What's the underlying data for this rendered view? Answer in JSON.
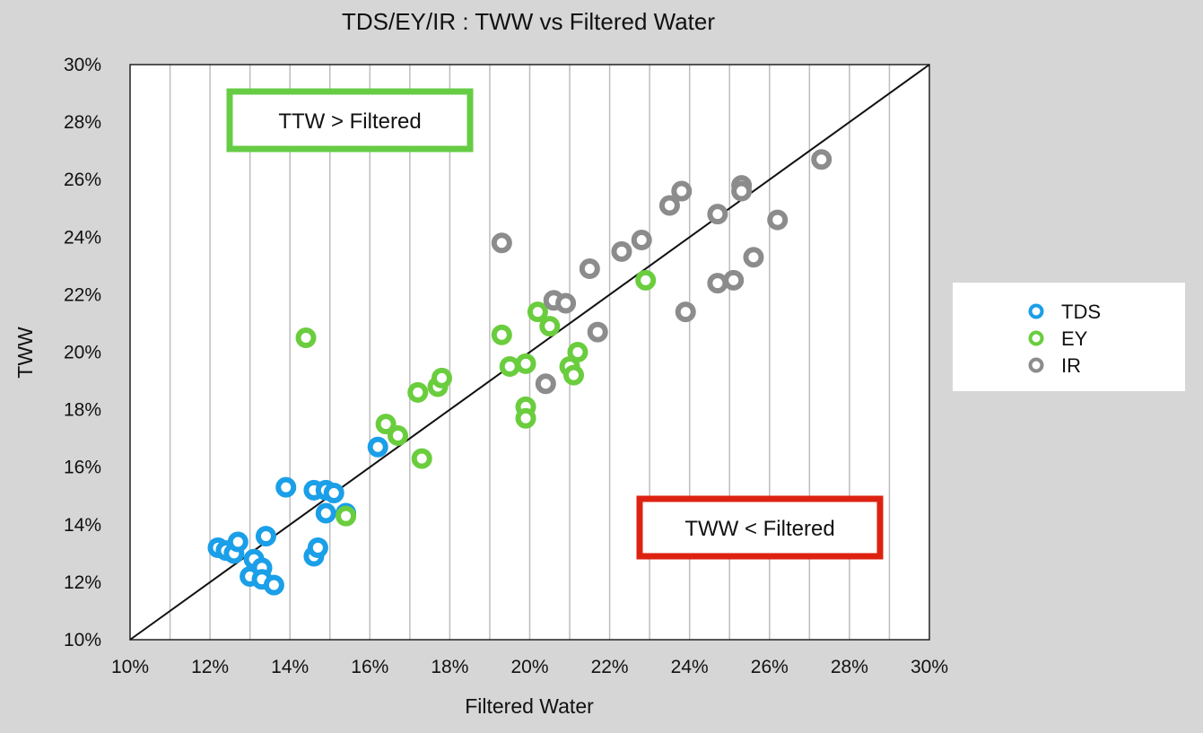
{
  "chart_data": {
    "type": "scatter",
    "title": "TDS/EY/IR : TWW vs Filtered Water",
    "xlabel": "Filtered Water",
    "ylabel": "TWW",
    "xlim": [
      10,
      30
    ],
    "ylim": [
      10,
      30
    ],
    "x_ticks": [
      "10%",
      "12%",
      "14%",
      "16%",
      "18%",
      "20%",
      "22%",
      "24%",
      "26%",
      "28%",
      "30%"
    ],
    "y_ticks": [
      "10%",
      "12%",
      "14%",
      "16%",
      "18%",
      "20%",
      "22%",
      "24%",
      "26%",
      "28%",
      "30%"
    ],
    "grid": "vertical",
    "reference_line": {
      "from": [
        10,
        10
      ],
      "to": [
        30,
        30
      ]
    },
    "legend_position": "right",
    "annotations": [
      {
        "text": "TTW > Filtered",
        "border_color": "#66cc44"
      },
      {
        "text": "TWW < Filtered",
        "border_color": "#dd2211"
      }
    ],
    "series": [
      {
        "name": "TDS",
        "color": "#1a9fe8",
        "points": [
          [
            12.2,
            13.2
          ],
          [
            12.4,
            13.1
          ],
          [
            12.6,
            13.0
          ],
          [
            12.7,
            13.4
          ],
          [
            13.0,
            12.2
          ],
          [
            13.1,
            12.8
          ],
          [
            13.3,
            12.5
          ],
          [
            13.3,
            12.1
          ],
          [
            13.4,
            13.6
          ],
          [
            13.6,
            11.9
          ],
          [
            13.9,
            15.3
          ],
          [
            14.6,
            12.9
          ],
          [
            14.7,
            13.2
          ],
          [
            14.6,
            15.2
          ],
          [
            14.9,
            15.2
          ],
          [
            15.1,
            15.1
          ],
          [
            14.9,
            14.4
          ],
          [
            15.4,
            14.4
          ],
          [
            16.2,
            16.7
          ]
        ]
      },
      {
        "name": "EY",
        "color": "#6acd3e",
        "points": [
          [
            14.4,
            20.5
          ],
          [
            15.4,
            14.3
          ],
          [
            16.4,
            17.5
          ],
          [
            16.7,
            17.1
          ],
          [
            17.3,
            16.3
          ],
          [
            17.2,
            18.6
          ],
          [
            17.7,
            18.8
          ],
          [
            17.8,
            19.1
          ],
          [
            19.3,
            20.6
          ],
          [
            19.5,
            19.5
          ],
          [
            19.9,
            19.6
          ],
          [
            19.9,
            18.1
          ],
          [
            19.9,
            17.7
          ],
          [
            20.2,
            21.4
          ],
          [
            20.5,
            20.9
          ],
          [
            21.0,
            19.5
          ],
          [
            21.1,
            19.2
          ],
          [
            21.2,
            20.0
          ],
          [
            22.9,
            22.5
          ]
        ]
      },
      {
        "name": "IR",
        "color": "#8c8c8c",
        "points": [
          [
            19.3,
            23.8
          ],
          [
            20.4,
            18.9
          ],
          [
            20.6,
            21.8
          ],
          [
            20.9,
            21.7
          ],
          [
            21.5,
            22.9
          ],
          [
            21.7,
            20.7
          ],
          [
            22.3,
            23.5
          ],
          [
            22.8,
            23.9
          ],
          [
            23.5,
            25.1
          ],
          [
            23.8,
            25.6
          ],
          [
            23.9,
            21.4
          ],
          [
            24.7,
            24.8
          ],
          [
            24.7,
            22.4
          ],
          [
            25.1,
            22.5
          ],
          [
            25.3,
            25.8
          ],
          [
            25.3,
            25.6
          ],
          [
            25.6,
            23.3
          ],
          [
            26.2,
            24.6
          ],
          [
            27.3,
            26.7
          ]
        ]
      }
    ]
  }
}
